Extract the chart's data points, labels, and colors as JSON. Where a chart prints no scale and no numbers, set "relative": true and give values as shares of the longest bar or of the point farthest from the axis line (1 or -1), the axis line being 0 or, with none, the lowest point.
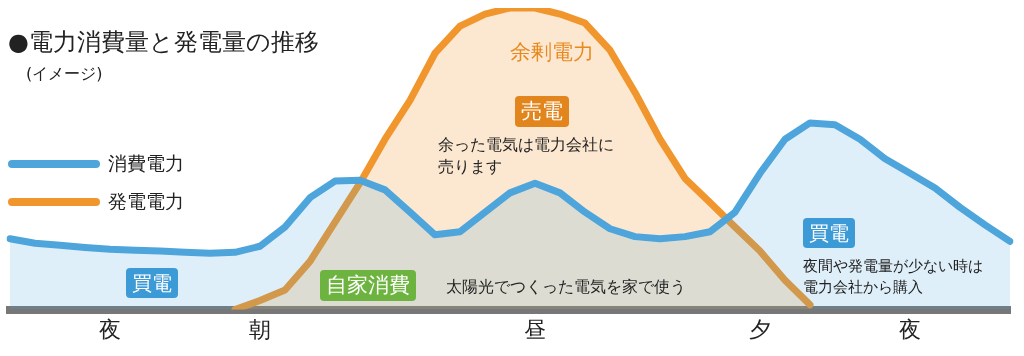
{
  "chart_data": {
    "type": "area",
    "title": "●電力消費量と発電量の推移",
    "subtitle": "(イメージ)",
    "relative": true,
    "legend": "left",
    "categories": [
      null,
      null,
      null,
      null,
      "夜",
      null,
      null,
      null,
      null,
      null,
      "朝",
      null,
      null,
      null,
      null,
      null,
      null,
      null,
      null,
      null,
      null,
      "昼",
      null,
      null,
      null,
      null,
      null,
      null,
      null,
      null,
      "夕",
      null,
      null,
      null,
      null,
      null,
      "夜",
      null,
      null,
      null,
      null
    ],
    "series": [
      {
        "name": "消費電力",
        "color": "#4ea5dc",
        "values": [
          0.235,
          0.22,
          0.213,
          0.206,
          0.2,
          0.197,
          0.194,
          0.19,
          0.187,
          0.19,
          0.21,
          0.274,
          0.371,
          0.426,
          0.429,
          0.397,
          0.323,
          0.248,
          0.258,
          0.323,
          0.387,
          0.419,
          0.387,
          0.323,
          0.268,
          0.242,
          0.235,
          0.242,
          0.258,
          0.323,
          0.452,
          0.565,
          0.619,
          0.613,
          0.565,
          0.5,
          0.452,
          0.403,
          0.339,
          0.281,
          0.226
        ]
      },
      {
        "name": "発電電力",
        "color": "#f0962d",
        "values": [
          null,
          null,
          null,
          null,
          null,
          null,
          null,
          null,
          null,
          0,
          0.03,
          0.065,
          0.16,
          0.29,
          0.42,
          0.565,
          0.694,
          0.85,
          0.94,
          0.98,
          1,
          1,
          0.98,
          0.95,
          0.86,
          0.72,
          0.565,
          0.435,
          0.355,
          0.274,
          0.194,
          0.097,
          0.016,
          null,
          null,
          null,
          null,
          null,
          null,
          null,
          null
        ]
      }
    ],
    "annotations": [
      "余剰電力",
      "売電",
      "余った電気は電力会社に売ります",
      "自家消費",
      "太陽光でつくった電気を家で使う",
      "買電",
      "買電",
      "夜間や発電量が少ない時は電力会社から購入"
    ]
  }
}
